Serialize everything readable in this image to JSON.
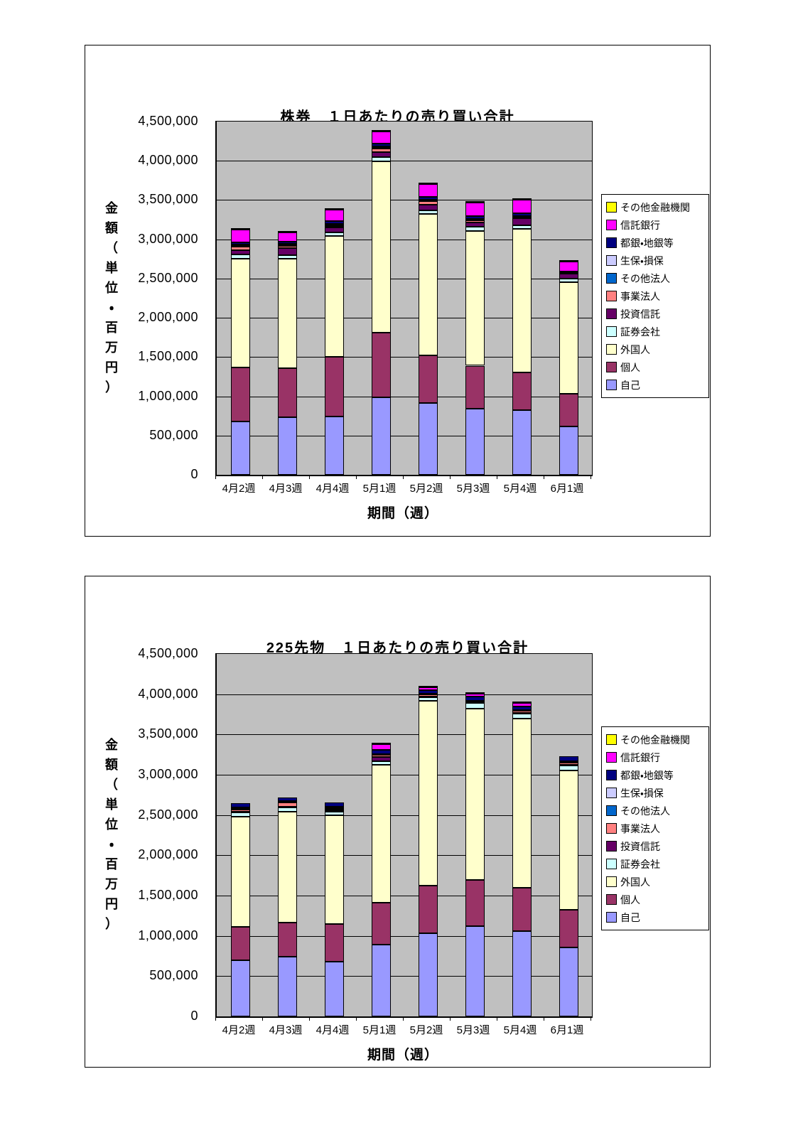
{
  "page": {
    "background": "#FFFFFF"
  },
  "chart_data": [
    {
      "type": "bar",
      "stacked": true,
      "title": "株券　１日あたりの売り買い合計",
      "xlabel": "期間（週）",
      "ylabel": "金額（単位・百万円）",
      "ylim": [
        0,
        4500000
      ],
      "ytick_step": 500000,
      "ytick_labels": [
        "0",
        "500,000",
        "1,000,000",
        "1,500,000",
        "2,000,000",
        "2,500,000",
        "3,000,000",
        "3,500,000",
        "4,000,000",
        "4,500,000"
      ],
      "grid": true,
      "plot_bg": "#C0C0C0",
      "legend_position": "right",
      "categories": [
        "4月2週",
        "4月3週",
        "4月4週",
        "5月1週",
        "5月2週",
        "5月3週",
        "5月4週",
        "6月1週"
      ],
      "series": [
        {
          "name": "自己",
          "color": "#9999FF",
          "values": [
            680000,
            735000,
            745000,
            990000,
            915000,
            845000,
            820000,
            615000
          ]
        },
        {
          "name": "個人",
          "color": "#993366",
          "values": [
            690000,
            625000,
            760000,
            825000,
            605000,
            545000,
            480000,
            415000
          ]
        },
        {
          "name": "外国人",
          "color": "#FFFFCC",
          "values": [
            1380000,
            1390000,
            1535000,
            2175000,
            1800000,
            1720000,
            1830000,
            1420000
          ]
        },
        {
          "name": "証券会社",
          "color": "#CCFFFF",
          "values": [
            55000,
            50000,
            45000,
            55000,
            45000,
            50000,
            50000,
            50000
          ]
        },
        {
          "name": "投資信託",
          "color": "#660066",
          "values": [
            55000,
            90000,
            65000,
            70000,
            80000,
            55000,
            85000,
            60000
          ]
        },
        {
          "name": "事業法人",
          "color": "#FF8080",
          "values": [
            50000,
            30000,
            20000,
            40000,
            40000,
            25000,
            15000,
            10000
          ]
        },
        {
          "name": "その他法人",
          "color": "#0066CC",
          "values": [
            10000,
            8000,
            10000,
            10000,
            8000,
            8000,
            8000,
            5000
          ]
        },
        {
          "name": "生保・損保",
          "color": "#CCCCFF",
          "values": [
            15000,
            12000,
            15000,
            15000,
            12000,
            12000,
            12000,
            5000
          ]
        },
        {
          "name": "都銀・地銀等",
          "color": "#000080",
          "values": [
            25000,
            30000,
            35000,
            40000,
            35000,
            40000,
            30000,
            10000
          ]
        },
        {
          "name": "信託銀行",
          "color": "#FF00FF",
          "values": [
            160000,
            115000,
            150000,
            155000,
            160000,
            165000,
            170000,
            130000
          ]
        },
        {
          "name": "その他金融機関",
          "color": "#FFFF00",
          "values": [
            10000,
            10000,
            15000,
            20000,
            10000,
            15000,
            10000,
            10000
          ]
        }
      ]
    },
    {
      "type": "bar",
      "stacked": true,
      "title": "225先物　１日あたりの売り買い合計",
      "xlabel": "期間（週）",
      "ylabel": "金額（単位・百万円）",
      "ylim": [
        0,
        4500000
      ],
      "ytick_step": 500000,
      "ytick_labels": [
        "0",
        "500,000",
        "1,000,000",
        "1,500,000",
        "2,000,000",
        "2,500,000",
        "3,000,000",
        "3,500,000",
        "4,000,000",
        "4,500,000"
      ],
      "grid": true,
      "plot_bg": "#C0C0C0",
      "legend_position": "right",
      "categories": [
        "4月2週",
        "4月3週",
        "4月4週",
        "5月1週",
        "5月2週",
        "5月3週",
        "5月4週",
        "6月1週"
      ],
      "series": [
        {
          "name": "自己",
          "color": "#9999FF",
          "values": [
            700000,
            740000,
            680000,
            895000,
            1030000,
            1125000,
            1060000,
            855000
          ]
        },
        {
          "name": "個人",
          "color": "#993366",
          "values": [
            415000,
            425000,
            470000,
            520000,
            595000,
            570000,
            540000,
            465000
          ]
        },
        {
          "name": "外国人",
          "color": "#FFFFCC",
          "values": [
            1365000,
            1380000,
            1345000,
            1710000,
            2295000,
            2130000,
            2095000,
            1730000
          ]
        },
        {
          "name": "証券会社",
          "color": "#CCFFFF",
          "values": [
            55000,
            50000,
            50000,
            40000,
            40000,
            65000,
            65000,
            65000
          ]
        },
        {
          "name": "投資信託",
          "color": "#660066",
          "values": [
            10000,
            10000,
            10000,
            55000,
            8000,
            5000,
            10000,
            12000
          ]
        },
        {
          "name": "事業法人",
          "color": "#FF8080",
          "values": [
            25000,
            50000,
            25000,
            25000,
            25000,
            15000,
            20000,
            20000
          ]
        },
        {
          "name": "その他法人",
          "color": "#0066CC",
          "values": [
            10000,
            5000,
            10000,
            7000,
            7000,
            5000,
            5000,
            8000
          ]
        },
        {
          "name": "生保・損保",
          "color": "#CCCCFF",
          "values": [
            10000,
            10000,
            10000,
            8000,
            5000,
            5000,
            5000,
            10000
          ]
        },
        {
          "name": "都銀・地銀等",
          "color": "#000080",
          "values": [
            55000,
            50000,
            60000,
            50000,
            45000,
            50000,
            50000,
            65000
          ]
        },
        {
          "name": "信託銀行",
          "color": "#FF00FF",
          "values": [
            0,
            0,
            0,
            70000,
            35000,
            40000,
            45000,
            0
          ]
        },
        {
          "name": "その他金融機関",
          "color": "#FFFF00",
          "values": [
            0,
            0,
            0,
            10000,
            5000,
            5000,
            5000,
            0
          ]
        }
      ]
    }
  ]
}
